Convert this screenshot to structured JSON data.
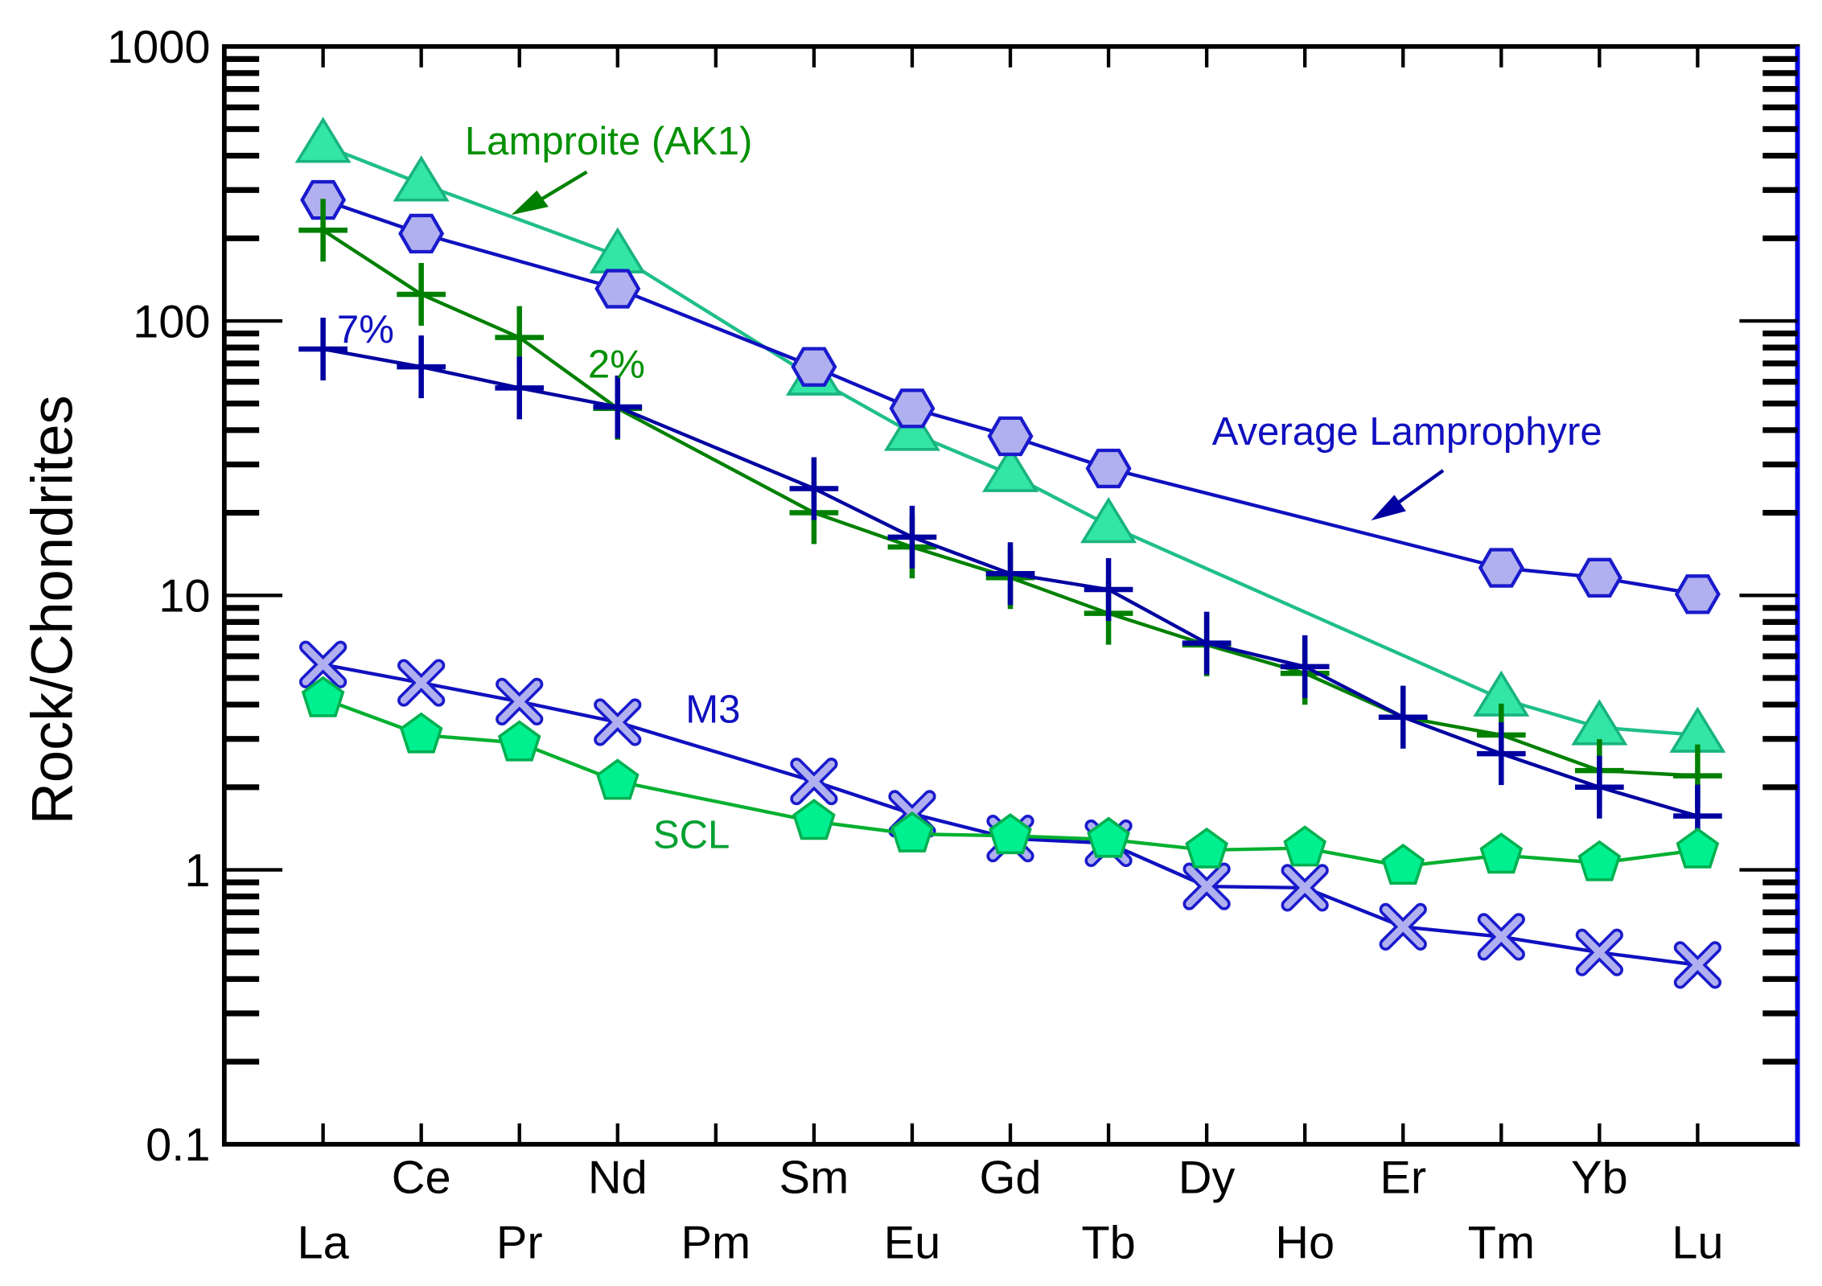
{
  "chart_data": {
    "type": "line",
    "title": "",
    "xlabel": "",
    "ylabel": "Rock/Chondrites",
    "yscale": "log",
    "ylim": [
      0.1,
      1000
    ],
    "yticks": [
      "0.1",
      "1",
      "10",
      "100",
      "1000"
    ],
    "grid": false,
    "categories": [
      "La",
      "Ce",
      "Pr",
      "Nd",
      "Pm",
      "Sm",
      "Eu",
      "Gd",
      "Tb",
      "Dy",
      "Ho",
      "Er",
      "Tm",
      "Yb",
      "Lu"
    ],
    "series": [
      {
        "name": "Lamproite (AK1)",
        "marker": "triangle",
        "color": "#1fbf8a",
        "fill": "#33e6a6",
        "stroke": "#19b37f",
        "values": [
          437,
          316,
          null,
          173,
          null,
          62,
          39,
          27.6,
          18,
          null,
          null,
          null,
          4.2,
          3.3,
          3.1
        ]
      },
      {
        "name": "Average Lamprophyre",
        "marker": "hexagon",
        "color": "#1010c0",
        "fill": "#b0b0f0",
        "stroke": "#1a1acc",
        "values": [
          276,
          208,
          null,
          131,
          null,
          68,
          48,
          38,
          29,
          null,
          null,
          null,
          12.6,
          11.6,
          10.1
        ]
      },
      {
        "name": "2%",
        "marker": "plus",
        "color": "#008000",
        "fill": "none",
        "stroke": "#008000",
        "values": [
          214,
          125,
          87,
          48,
          null,
          20,
          15,
          11.6,
          8.6,
          6.6,
          5.2,
          3.6,
          3.1,
          2.3,
          2.2
        ]
      },
      {
        "name": "7%",
        "marker": "plus",
        "color": "#0000a0",
        "fill": "none",
        "stroke": "#0000a0",
        "values": [
          79,
          68,
          57,
          48.6,
          null,
          24.5,
          16.3,
          12.0,
          10.5,
          6.7,
          5.5,
          3.6,
          2.65,
          2.0,
          1.57
        ]
      },
      {
        "name": "M3",
        "marker": "x",
        "color": "#1010c0",
        "fill": "#b0b0f0",
        "stroke": "#1a1acc",
        "values": [
          5.6,
          4.8,
          4.1,
          3.45,
          null,
          2.1,
          1.6,
          1.3,
          1.25,
          0.87,
          0.86,
          0.62,
          0.57,
          0.5,
          0.45
        ]
      },
      {
        "name": "SCL",
        "marker": "pentagon",
        "color": "#00b030",
        "fill": "#00f090",
        "stroke": "#00b050",
        "values": [
          4.2,
          3.1,
          2.9,
          2.1,
          null,
          1.5,
          1.35,
          1.33,
          1.29,
          1.18,
          1.2,
          1.03,
          1.13,
          1.06,
          1.18
        ]
      }
    ],
    "annotations": {
      "lamproite": "Lamproite (AK1)",
      "lamprophyre": "Average Lamprophyre",
      "p7": "7%",
      "p2": "2%",
      "m3": "M3",
      "scl": "SCL"
    }
  }
}
